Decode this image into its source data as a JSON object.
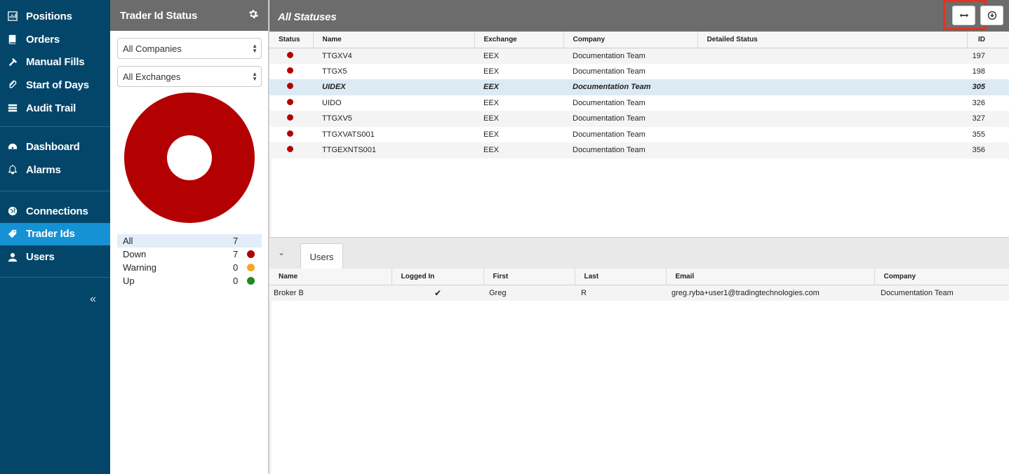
{
  "nav": {
    "groups": [
      [
        {
          "label": "Positions",
          "icon": "bar-chart-icon"
        },
        {
          "label": "Orders",
          "icon": "book-icon"
        },
        {
          "label": "Manual Fills",
          "icon": "hammer-icon"
        },
        {
          "label": "Start of Days",
          "icon": "paperclip-icon"
        },
        {
          "label": "Audit Trail",
          "icon": "list-icon"
        }
      ],
      [
        {
          "label": "Dashboard",
          "icon": "dashboard-icon"
        },
        {
          "label": "Alarms",
          "icon": "bell-icon"
        }
      ],
      [
        {
          "label": "Connections",
          "icon": "globe-icon"
        },
        {
          "label": "Trader Ids",
          "icon": "tag-icon",
          "active": true
        },
        {
          "label": "Users",
          "icon": "user-icon"
        }
      ]
    ],
    "collapse": "«"
  },
  "panel": {
    "title": "Trader Id Status",
    "company_filter": "All Companies",
    "exchange_filter": "All Exchanges",
    "legend": [
      {
        "label": "All",
        "count": "7",
        "color": ""
      },
      {
        "label": "Down",
        "count": "7",
        "color": "#b30000"
      },
      {
        "label": "Warning",
        "count": "0",
        "color": "#f5a623"
      },
      {
        "label": "Up",
        "count": "0",
        "color": "#1e8a1e"
      }
    ]
  },
  "chart_data": {
    "type": "pie",
    "categories": [
      "Down",
      "Warning",
      "Up"
    ],
    "values": [
      7,
      0,
      0
    ],
    "colors": [
      "#b30000",
      "#f5a623",
      "#1e8a1e"
    ],
    "donut": true
  },
  "main": {
    "title": "All Statuses",
    "columns": [
      "Status",
      "Name",
      "Exchange",
      "Company",
      "Detailed Status",
      "ID"
    ],
    "rows": [
      {
        "name": "TTGXV4",
        "exchange": "EEX",
        "company": "Documentation Team",
        "detail": "",
        "id": "197"
      },
      {
        "name": "TTGX5",
        "exchange": "EEX",
        "company": "Documentation Team",
        "detail": "",
        "id": "198"
      },
      {
        "name": "UIDEX",
        "exchange": "EEX",
        "company": "Documentation Team",
        "detail": "",
        "id": "305",
        "selected": true
      },
      {
        "name": "UIDO",
        "exchange": "EEX",
        "company": "Documentation Team",
        "detail": "",
        "id": "326"
      },
      {
        "name": "TTGXV5",
        "exchange": "EEX",
        "company": "Documentation Team",
        "detail": "",
        "id": "327"
      },
      {
        "name": "TTGXVATS001",
        "exchange": "EEX",
        "company": "Documentation Team",
        "detail": "",
        "id": "355"
      },
      {
        "name": "TTGEXNTS001",
        "exchange": "EEX",
        "company": "Documentation Team",
        "detail": "",
        "id": "356"
      }
    ]
  },
  "users": {
    "tab_label": "Users",
    "columns": [
      "Name",
      "Logged In",
      "First",
      "Last",
      "Email",
      "Company"
    ],
    "rows": [
      {
        "name": "Broker B",
        "logged_in": "✔",
        "first": "Greg",
        "last": "R",
        "email": "greg.ryba+user1@tradingtechnologies.com",
        "company": "Documentation Team"
      }
    ]
  }
}
